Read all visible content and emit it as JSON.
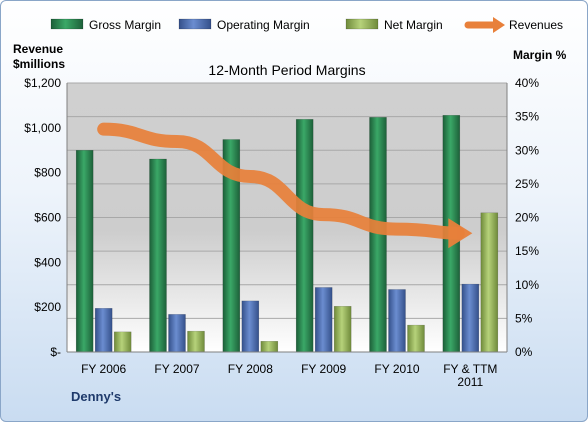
{
  "chart_data": {
    "type": "bar",
    "title": "12-Month Period Margins",
    "company": "Denny's",
    "left_axis_label": [
      "Revenue",
      "$millions"
    ],
    "right_axis_label": "Margin %",
    "categories": [
      [
        "FY 2006"
      ],
      [
        "FY 2007"
      ],
      [
        "FY 2008"
      ],
      [
        "FY 2009"
      ],
      [
        "FY 2010"
      ],
      [
        "FY & TTM",
        "2011"
      ]
    ],
    "left_ylim": [
      0,
      1200
    ],
    "left_ticks": [
      "$-",
      "$200",
      "$400",
      "$600",
      "$800",
      "$1,000",
      "$1,200"
    ],
    "right_ylim": [
      0,
      40
    ],
    "right_ticks": [
      "0%",
      "5%",
      "10%",
      "15%",
      "20%",
      "25%",
      "30%",
      "35%",
      "40%"
    ],
    "grid": true,
    "legend_position": "top",
    "series": [
      {
        "name": "Gross Margin",
        "axis": "right",
        "kind": "bar",
        "color": "#2e8b57",
        "values": [
          30.0,
          28.7,
          31.6,
          34.6,
          34.9,
          35.2
        ]
      },
      {
        "name": "Operating Margin",
        "axis": "right",
        "kind": "bar",
        "color": "#4f6fb3",
        "values": [
          6.5,
          5.6,
          7.6,
          9.6,
          9.3,
          10.1
        ]
      },
      {
        "name": "Net Margin",
        "axis": "right",
        "kind": "bar",
        "color": "#9bbb59",
        "values": [
          3.0,
          3.1,
          1.6,
          6.8,
          4.0,
          20.7
        ]
      },
      {
        "name": "Revenues",
        "axis": "left",
        "kind": "line",
        "color": "#e8803a",
        "values": [
          994,
          939,
          783,
          613,
          548,
          530
        ]
      }
    ]
  }
}
